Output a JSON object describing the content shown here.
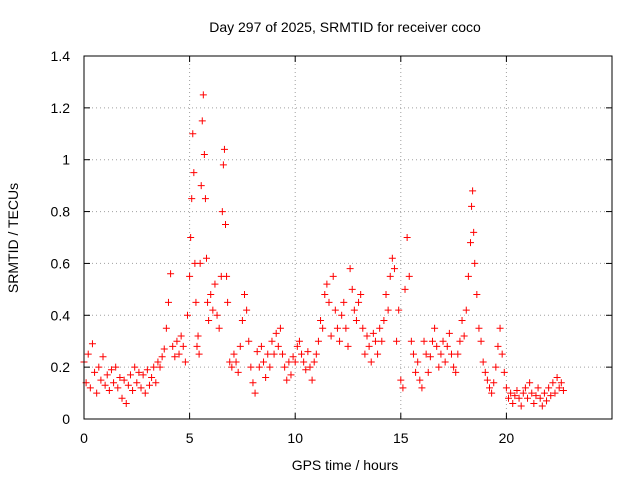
{
  "chart_data": {
    "type": "scatter",
    "title": "Day 297 of 2025, SRMTID for receiver coco",
    "xlabel": "GPS time / hours",
    "ylabel": "SRMTID / TECUs",
    "xlim": [
      0,
      25
    ],
    "ylim": [
      0,
      1.4
    ],
    "x_ticks": [
      0,
      5,
      10,
      15,
      20
    ],
    "y_ticks": [
      0,
      0.2,
      0.4,
      0.6,
      0.8,
      1,
      1.2,
      1.4
    ],
    "x_tick_labels": [
      "0",
      "5",
      "10",
      "15",
      "20"
    ],
    "y_tick_labels": [
      "0",
      "0.2",
      "0.4",
      "0.6",
      "0.8",
      "1",
      "1.2",
      "1.4"
    ],
    "grid": true,
    "marker": "+",
    "colors": {
      "points": "#ff0000",
      "grid": "#a0a0a0",
      "axes": "#000000"
    },
    "series": [
      {
        "name": "SRMTID",
        "points": [
          [
            0.0,
            0.22
          ],
          [
            0.1,
            0.14
          ],
          [
            0.2,
            0.25
          ],
          [
            0.3,
            0.12
          ],
          [
            0.4,
            0.29
          ],
          [
            0.5,
            0.18
          ],
          [
            0.6,
            0.1
          ],
          [
            0.7,
            0.2
          ],
          [
            0.8,
            0.15
          ],
          [
            0.9,
            0.24
          ],
          [
            1.0,
            0.13
          ],
          [
            1.1,
            0.17
          ],
          [
            1.2,
            0.11
          ],
          [
            1.3,
            0.19
          ],
          [
            1.4,
            0.14
          ],
          [
            1.5,
            0.2
          ],
          [
            1.6,
            0.12
          ],
          [
            1.7,
            0.16
          ],
          [
            1.8,
            0.08
          ],
          [
            1.9,
            0.15
          ],
          [
            2.0,
            0.06
          ],
          [
            2.1,
            0.13
          ],
          [
            2.2,
            0.17
          ],
          [
            2.3,
            0.11
          ],
          [
            2.4,
            0.2
          ],
          [
            2.5,
            0.14
          ],
          [
            2.6,
            0.18
          ],
          [
            2.7,
            0.12
          ],
          [
            2.8,
            0.17
          ],
          [
            2.9,
            0.1
          ],
          [
            3.0,
            0.19
          ],
          [
            3.1,
            0.13
          ],
          [
            3.2,
            0.16
          ],
          [
            3.3,
            0.2
          ],
          [
            3.4,
            0.14
          ],
          [
            3.5,
            0.22
          ],
          [
            3.6,
            0.2
          ],
          [
            3.7,
            0.24
          ],
          [
            3.8,
            0.27
          ],
          [
            3.9,
            0.35
          ],
          [
            4.0,
            0.45
          ],
          [
            4.1,
            0.56
          ],
          [
            4.2,
            0.28
          ],
          [
            4.3,
            0.24
          ],
          [
            4.4,
            0.3
          ],
          [
            4.5,
            0.25
          ],
          [
            4.6,
            0.32
          ],
          [
            4.7,
            0.28
          ],
          [
            4.8,
            0.22
          ],
          [
            4.9,
            0.4
          ],
          [
            5.0,
            0.55
          ],
          [
            5.05,
            0.7
          ],
          [
            5.1,
            0.85
          ],
          [
            5.15,
            1.1
          ],
          [
            5.2,
            0.95
          ],
          [
            5.25,
            0.6
          ],
          [
            5.3,
            0.45
          ],
          [
            5.35,
            0.28
          ],
          [
            5.4,
            0.32
          ],
          [
            5.45,
            0.25
          ],
          [
            5.5,
            0.6
          ],
          [
            5.55,
            0.9
          ],
          [
            5.6,
            1.15
          ],
          [
            5.65,
            1.25
          ],
          [
            5.7,
            1.02
          ],
          [
            5.75,
            0.85
          ],
          [
            5.8,
            0.62
          ],
          [
            5.85,
            0.45
          ],
          [
            5.9,
            0.38
          ],
          [
            6.0,
            0.48
          ],
          [
            6.1,
            0.42
          ],
          [
            6.2,
            0.52
          ],
          [
            6.3,
            0.4
          ],
          [
            6.4,
            0.35
          ],
          [
            6.5,
            0.55
          ],
          [
            6.55,
            0.8
          ],
          [
            6.6,
            0.98
          ],
          [
            6.65,
            1.04
          ],
          [
            6.7,
            0.75
          ],
          [
            6.75,
            0.55
          ],
          [
            6.8,
            0.45
          ],
          [
            6.9,
            0.22
          ],
          [
            7.0,
            0.2
          ],
          [
            7.1,
            0.25
          ],
          [
            7.2,
            0.22
          ],
          [
            7.3,
            0.18
          ],
          [
            7.4,
            0.28
          ],
          [
            7.5,
            0.38
          ],
          [
            7.6,
            0.48
          ],
          [
            7.7,
            0.42
          ],
          [
            7.8,
            0.3
          ],
          [
            7.9,
            0.2
          ],
          [
            8.0,
            0.14
          ],
          [
            8.1,
            0.1
          ],
          [
            8.2,
            0.26
          ],
          [
            8.3,
            0.2
          ],
          [
            8.4,
            0.28
          ],
          [
            8.5,
            0.22
          ],
          [
            8.6,
            0.16
          ],
          [
            8.7,
            0.25
          ],
          [
            8.8,
            0.2
          ],
          [
            8.9,
            0.3
          ],
          [
            9.0,
            0.25
          ],
          [
            9.1,
            0.33
          ],
          [
            9.2,
            0.28
          ],
          [
            9.3,
            0.35
          ],
          [
            9.4,
            0.25
          ],
          [
            9.5,
            0.2
          ],
          [
            9.6,
            0.15
          ],
          [
            9.7,
            0.22
          ],
          [
            9.8,
            0.17
          ],
          [
            9.9,
            0.24
          ],
          [
            10.0,
            0.22
          ],
          [
            10.1,
            0.28
          ],
          [
            10.2,
            0.3
          ],
          [
            10.3,
            0.25
          ],
          [
            10.4,
            0.22
          ],
          [
            10.5,
            0.19
          ],
          [
            10.6,
            0.26
          ],
          [
            10.7,
            0.2
          ],
          [
            10.8,
            0.15
          ],
          [
            10.9,
            0.22
          ],
          [
            11.0,
            0.25
          ],
          [
            11.1,
            0.3
          ],
          [
            11.2,
            0.38
          ],
          [
            11.3,
            0.35
          ],
          [
            11.4,
            0.48
          ],
          [
            11.5,
            0.52
          ],
          [
            11.6,
            0.45
          ],
          [
            11.7,
            0.32
          ],
          [
            11.8,
            0.55
          ],
          [
            11.9,
            0.42
          ],
          [
            12.0,
            0.35
          ],
          [
            12.1,
            0.3
          ],
          [
            12.2,
            0.4
          ],
          [
            12.3,
            0.45
          ],
          [
            12.4,
            0.35
          ],
          [
            12.5,
            0.28
          ],
          [
            12.6,
            0.58
          ],
          [
            12.7,
            0.5
          ],
          [
            12.8,
            0.42
          ],
          [
            12.9,
            0.38
          ],
          [
            13.0,
            0.45
          ],
          [
            13.1,
            0.48
          ],
          [
            13.2,
            0.35
          ],
          [
            13.3,
            0.25
          ],
          [
            13.4,
            0.32
          ],
          [
            13.5,
            0.28
          ],
          [
            13.6,
            0.22
          ],
          [
            13.7,
            0.33
          ],
          [
            13.8,
            0.3
          ],
          [
            13.9,
            0.25
          ],
          [
            14.0,
            0.35
          ],
          [
            14.1,
            0.3
          ],
          [
            14.2,
            0.38
          ],
          [
            14.3,
            0.48
          ],
          [
            14.4,
            0.42
          ],
          [
            14.5,
            0.55
          ],
          [
            14.6,
            0.62
          ],
          [
            14.7,
            0.58
          ],
          [
            14.8,
            0.3
          ],
          [
            14.9,
            0.42
          ],
          [
            15.0,
            0.15
          ],
          [
            15.1,
            0.12
          ],
          [
            15.2,
            0.5
          ],
          [
            15.3,
            0.7
          ],
          [
            15.4,
            0.55
          ],
          [
            15.5,
            0.3
          ],
          [
            15.6,
            0.25
          ],
          [
            15.7,
            0.18
          ],
          [
            15.8,
            0.22
          ],
          [
            15.9,
            0.15
          ],
          [
            16.0,
            0.12
          ],
          [
            16.1,
            0.3
          ],
          [
            16.2,
            0.25
          ],
          [
            16.3,
            0.18
          ],
          [
            16.4,
            0.24
          ],
          [
            16.5,
            0.3
          ],
          [
            16.6,
            0.35
          ],
          [
            16.7,
            0.28
          ],
          [
            16.8,
            0.2
          ],
          [
            16.9,
            0.25
          ],
          [
            17.0,
            0.3
          ],
          [
            17.1,
            0.22
          ],
          [
            17.2,
            0.28
          ],
          [
            17.3,
            0.33
          ],
          [
            17.4,
            0.25
          ],
          [
            17.5,
            0.2
          ],
          [
            17.6,
            0.18
          ],
          [
            17.7,
            0.25
          ],
          [
            17.8,
            0.3
          ],
          [
            17.9,
            0.38
          ],
          [
            18.0,
            0.32
          ],
          [
            18.1,
            0.42
          ],
          [
            18.2,
            0.55
          ],
          [
            18.3,
            0.68
          ],
          [
            18.35,
            0.82
          ],
          [
            18.4,
            0.88
          ],
          [
            18.45,
            0.72
          ],
          [
            18.5,
            0.6
          ],
          [
            18.6,
            0.48
          ],
          [
            18.7,
            0.35
          ],
          [
            18.8,
            0.3
          ],
          [
            18.9,
            0.22
          ],
          [
            19.0,
            0.18
          ],
          [
            19.1,
            0.15
          ],
          [
            19.2,
            0.12
          ],
          [
            19.3,
            0.1
          ],
          [
            19.4,
            0.14
          ],
          [
            19.5,
            0.2
          ],
          [
            19.6,
            0.28
          ],
          [
            19.7,
            0.35
          ],
          [
            19.8,
            0.25
          ],
          [
            19.9,
            0.18
          ],
          [
            20.0,
            0.12
          ],
          [
            20.1,
            0.08
          ],
          [
            20.2,
            0.1
          ],
          [
            20.3,
            0.06
          ],
          [
            20.4,
            0.09
          ],
          [
            20.5,
            0.11
          ],
          [
            20.6,
            0.08
          ],
          [
            20.7,
            0.05
          ],
          [
            20.8,
            0.1
          ],
          [
            20.9,
            0.12
          ],
          [
            21.0,
            0.08
          ],
          [
            21.1,
            0.14
          ],
          [
            21.2,
            0.1
          ],
          [
            21.3,
            0.06
          ],
          [
            21.4,
            0.09
          ],
          [
            21.5,
            0.12
          ],
          [
            21.6,
            0.08
          ],
          [
            21.7,
            0.05
          ],
          [
            21.8,
            0.1
          ],
          [
            21.9,
            0.07
          ],
          [
            22.0,
            0.12
          ],
          [
            22.1,
            0.09
          ],
          [
            22.2,
            0.14
          ],
          [
            22.3,
            0.1
          ],
          [
            22.4,
            0.16
          ],
          [
            22.5,
            0.12
          ],
          [
            22.6,
            0.14
          ],
          [
            22.7,
            0.11
          ]
        ]
      }
    ]
  }
}
